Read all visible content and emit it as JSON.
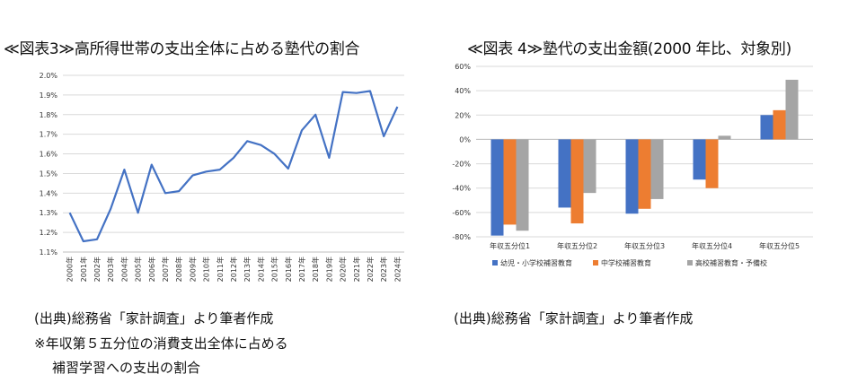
{
  "titles": {
    "left": "≪図表3≫高所得世帯の支出全体に占める塾代の割合",
    "right": "≪図表 4≫塾代の支出金額(2000 年比、対象別)"
  },
  "notes": {
    "left_source": "(出典)総務省「家計調査」より筆者作成",
    "left_note_line1": "※年収第５五分位の消費支出全体に占める",
    "left_note_line2": "補習学習への支出の割合",
    "right_source": "(出典)総務省「家計調査」より筆者作成"
  },
  "chart_data": [
    {
      "type": "line",
      "title": "",
      "xlabel": "",
      "ylabel": "",
      "x": [
        "2000年",
        "2001年",
        "2002年",
        "2003年",
        "2004年",
        "2005年",
        "2006年",
        "2007年",
        "2008年",
        "2009年",
        "2010年",
        "2011年",
        "2012年",
        "2013年",
        "2014年",
        "2015年",
        "2016年",
        "2017年",
        "2018年",
        "2019年",
        "2020年",
        "2021年",
        "2022年",
        "2023年",
        "2024年"
      ],
      "series": [
        {
          "values": [
            1.3,
            1.155,
            1.165,
            1.32,
            1.52,
            1.3,
            1.545,
            1.4,
            1.41,
            1.49,
            1.51,
            1.52,
            1.58,
            1.665,
            1.645,
            1.6,
            1.525,
            1.72,
            1.8,
            1.58,
            1.915,
            1.91,
            1.92,
            1.69,
            1.84
          ],
          "color": "#4472C4"
        }
      ],
      "ylim": [
        1.1,
        2.0
      ],
      "yticks": [
        "1.1%",
        "1.2%",
        "1.3%",
        "1.4%",
        "1.5%",
        "1.6%",
        "1.7%",
        "1.8%",
        "1.9%",
        "2.0%"
      ],
      "grid": true,
      "legend": "none"
    },
    {
      "type": "bar",
      "title": "",
      "categories": [
        "年収五分位1",
        "年収五分位2",
        "年収五分位3",
        "年収五分位4",
        "年収五分位5"
      ],
      "series": [
        {
          "name": "幼児・小学校補習教育",
          "values": [
            -79,
            -56,
            -61,
            -33,
            20
          ],
          "color": "#4472C4"
        },
        {
          "name": "中学校補習教育",
          "values": [
            -70,
            -69,
            -57,
            -40,
            24
          ],
          "color": "#ED7D31"
        },
        {
          "name": "高校補習教育・予備校",
          "values": [
            -75,
            -44,
            -49,
            3,
            49
          ],
          "color": "#A5A5A5"
        }
      ],
      "ylim": [
        -80,
        60
      ],
      "yticks": [
        "-80%",
        "-60%",
        "-40%",
        "-20%",
        "0%",
        "20%",
        "40%",
        "60%"
      ],
      "grid": true,
      "legend": "bottom"
    }
  ]
}
